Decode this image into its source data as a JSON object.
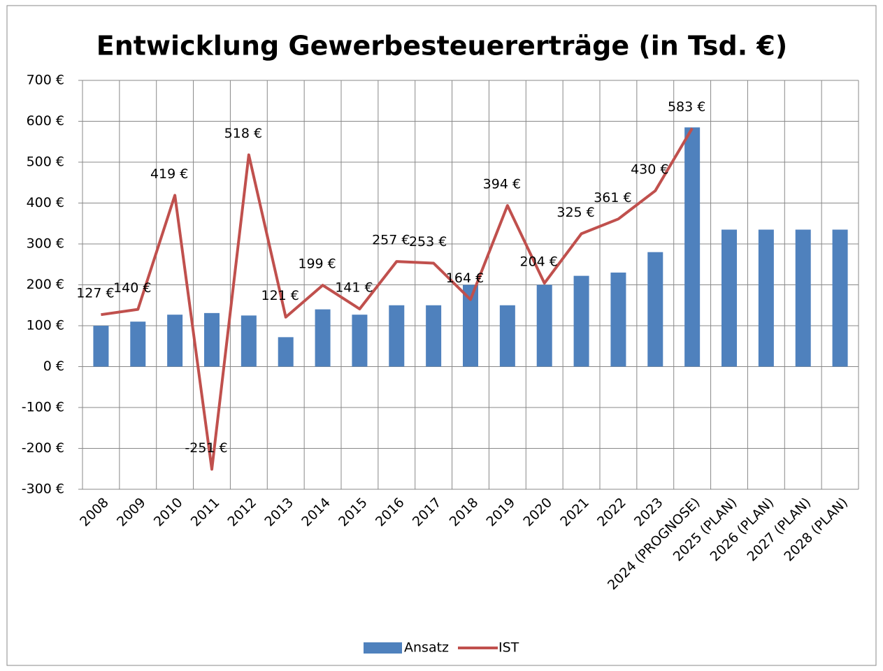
{
  "chart_data": {
    "type": "bar_line",
    "title": "Entwicklung Gewerbesteuererträge (in Tsd. €)",
    "categories": [
      "2008",
      "2009",
      "2010",
      "2011",
      "2012",
      "2013",
      "2014",
      "2015",
      "2016",
      "2017",
      "2018",
      "2019",
      "2020",
      "2021",
      "2022",
      "2023",
      "2024 (PROGNOSE)",
      "2025 (PLAN)",
      "2026 (PLAN)",
      "2027 (PLAN)",
      "2028 (PLAN)"
    ],
    "series": [
      {
        "name": "Ansatz",
        "type": "bar",
        "color": "#4f81bd",
        "values": [
          100,
          110,
          127,
          131,
          125,
          72,
          140,
          127,
          150,
          150,
          200,
          150,
          200,
          222,
          230,
          280,
          585,
          335,
          335,
          335,
          335
        ]
      },
      {
        "name": "IST",
        "type": "line",
        "color": "#c0504d",
        "values": [
          127,
          140,
          419,
          -251,
          518,
          121,
          199,
          141,
          257,
          253,
          164,
          394,
          204,
          325,
          361,
          430,
          583,
          null,
          null,
          null,
          null
        ],
        "value_labels": [
          "127 €",
          "140 €",
          "419 €",
          "-251 €",
          "518 €",
          "121 €",
          "199 €",
          "141 €",
          "257 €",
          "253 €",
          "164 €",
          "394 €",
          "204 €",
          "325 €",
          "361 €",
          "430 €",
          "583 €",
          null,
          null,
          null,
          null
        ]
      }
    ],
    "ylim": [
      -300,
      700
    ],
    "yticks": [
      {
        "value": -300,
        "label": "-300 €"
      },
      {
        "value": -200,
        "label": "-200 €"
      },
      {
        "value": -100,
        "label": "-100 €"
      },
      {
        "value": 0,
        "label": "0 €"
      },
      {
        "value": 100,
        "label": "100 €"
      },
      {
        "value": 200,
        "label": "200 €"
      },
      {
        "value": 300,
        "label": "300 €"
      },
      {
        "value": 400,
        "label": "400 €"
      },
      {
        "value": 500,
        "label": "500 €"
      },
      {
        "value": 600,
        "label": "600 €"
      },
      {
        "value": 700,
        "label": "700 €"
      }
    ],
    "grid": true,
    "legend": "bottom"
  }
}
